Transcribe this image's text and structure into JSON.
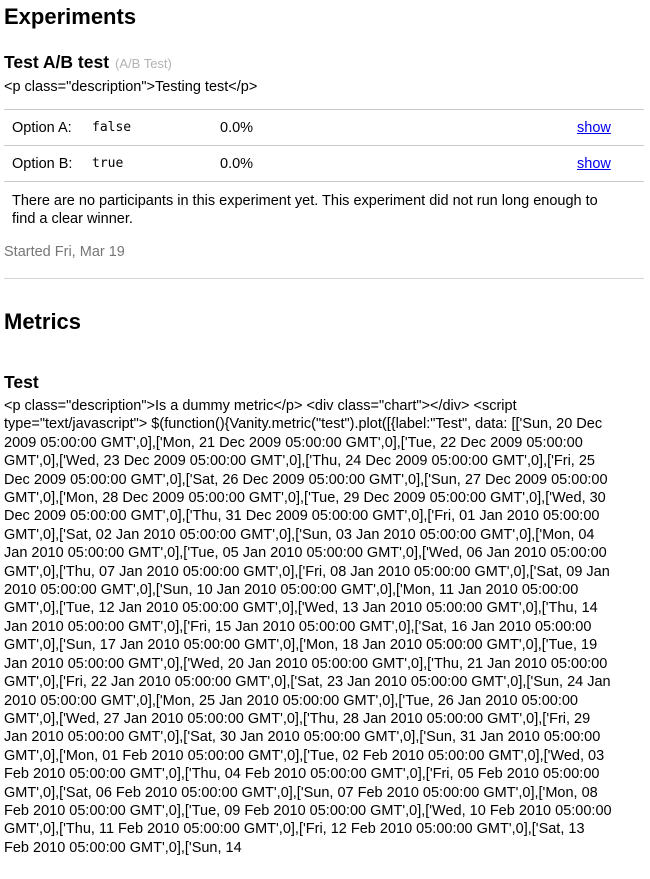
{
  "page": {
    "heading": "Experiments"
  },
  "experiment": {
    "title": "Test A/B test",
    "type": "(A/B Test)",
    "description_raw": "<p class=\"description\">Testing test</p>",
    "options": [
      {
        "label": "Option A:",
        "value": "false",
        "percent": "0.0%",
        "action": "show"
      },
      {
        "label": "Option B:",
        "value": "true",
        "percent": "0.0%",
        "action": "show"
      }
    ],
    "summary": "There are no participants in this experiment yet. This experiment did not run long enough to find a clear winner.",
    "started": "Started Fri, Mar 19"
  },
  "metrics": {
    "heading": "Metrics",
    "items": [
      {
        "title": "Test",
        "raw": "<p class=\"description\">Is a dummy metric</p> <div class=\"chart\"></div> <script type=\"text/javascript\"> $(function(){Vanity.metric(\"test\").plot([{label:\"Test\", data: [['Sun, 20 Dec 2009 05:00:00 GMT',0],['Mon, 21 Dec 2009 05:00:00 GMT',0],['Tue, 22 Dec 2009 05:00:00 GMT',0],['Wed, 23 Dec 2009 05:00:00 GMT',0],['Thu, 24 Dec 2009 05:00:00 GMT',0],['Fri, 25 Dec 2009 05:00:00 GMT',0],['Sat, 26 Dec 2009 05:00:00 GMT',0],['Sun, 27 Dec 2009 05:00:00 GMT',0],['Mon, 28 Dec 2009 05:00:00 GMT',0],['Tue, 29 Dec 2009 05:00:00 GMT',0],['Wed, 30 Dec 2009 05:00:00 GMT',0],['Thu, 31 Dec 2009 05:00:00 GMT',0],['Fri, 01 Jan 2010 05:00:00 GMT',0],['Sat, 02 Jan 2010 05:00:00 GMT',0],['Sun, 03 Jan 2010 05:00:00 GMT',0],['Mon, 04 Jan 2010 05:00:00 GMT',0],['Tue, 05 Jan 2010 05:00:00 GMT',0],['Wed, 06 Jan 2010 05:00:00 GMT',0],['Thu, 07 Jan 2010 05:00:00 GMT',0],['Fri, 08 Jan 2010 05:00:00 GMT',0],['Sat, 09 Jan 2010 05:00:00 GMT',0],['Sun, 10 Jan 2010 05:00:00 GMT',0],['Mon, 11 Jan 2010 05:00:00 GMT',0],['Tue, 12 Jan 2010 05:00:00 GMT',0],['Wed, 13 Jan 2010 05:00:00 GMT',0],['Thu, 14 Jan 2010 05:00:00 GMT',0],['Fri, 15 Jan 2010 05:00:00 GMT',0],['Sat, 16 Jan 2010 05:00:00 GMT',0],['Sun, 17 Jan 2010 05:00:00 GMT',0],['Mon, 18 Jan 2010 05:00:00 GMT',0],['Tue, 19 Jan 2010 05:00:00 GMT',0],['Wed, 20 Jan 2010 05:00:00 GMT',0],['Thu, 21 Jan 2010 05:00:00 GMT',0],['Fri, 22 Jan 2010 05:00:00 GMT',0],['Sat, 23 Jan 2010 05:00:00 GMT',0],['Sun, 24 Jan 2010 05:00:00 GMT',0],['Mon, 25 Jan 2010 05:00:00 GMT',0],['Tue, 26 Jan 2010 05:00:00 GMT',0],['Wed, 27 Jan 2010 05:00:00 GMT',0],['Thu, 28 Jan 2010 05:00:00 GMT',0],['Fri, 29 Jan 2010 05:00:00 GMT',0],['Sat, 30 Jan 2010 05:00:00 GMT',0],['Sun, 31 Jan 2010 05:00:00 GMT',0],['Mon, 01 Feb 2010 05:00:00 GMT',0],['Tue, 02 Feb 2010 05:00:00 GMT',0],['Wed, 03 Feb 2010 05:00:00 GMT',0],['Thu, 04 Feb 2010 05:00:00 GMT',0],['Fri, 05 Feb 2010 05:00:00 GMT',0],['Sat, 06 Feb 2010 05:00:00 GMT',0],['Sun, 07 Feb 2010 05:00:00 GMT',0],['Mon, 08 Feb 2010 05:00:00 GMT',0],['Tue, 09 Feb 2010 05:00:00 GMT',0],['Wed, 10 Feb 2010 05:00:00 GMT',0],['Thu, 11 Feb 2010 05:00:00 GMT',0],['Fri, 12 Feb 2010 05:00:00 GMT',0],['Sat, 13 Feb 2010 05:00:00 GMT',0],['Sun, 14"
      }
    ]
  },
  "colors": {
    "link": "#0000ee",
    "muted": "#777777",
    "type_label": "#b3b3b3",
    "rule": "#c8c8c8"
  }
}
